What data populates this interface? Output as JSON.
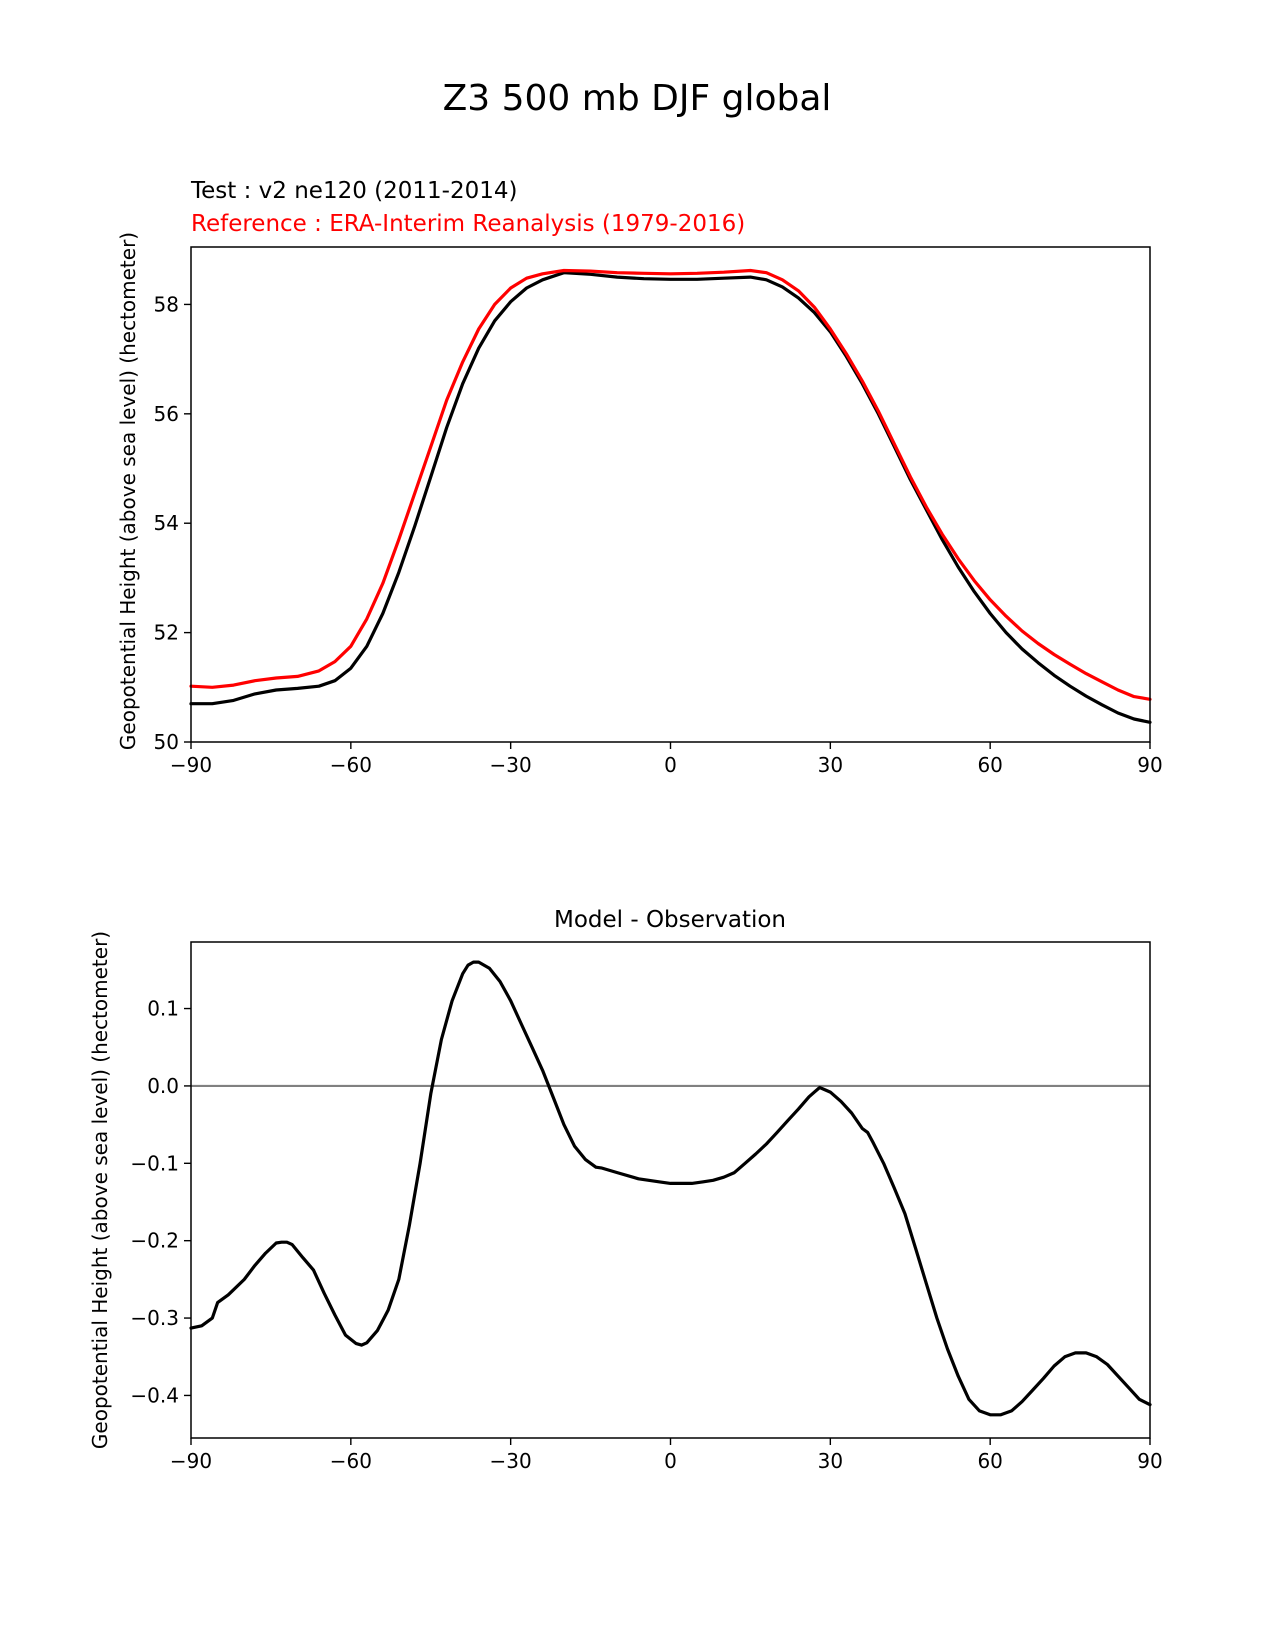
{
  "figure": {
    "title": "Z3 500 mb DJF global"
  },
  "chart_data": [
    {
      "type": "line",
      "name": "top",
      "title_left_test": "Test : v2 ne120 (2011-2014)",
      "title_left_ref": "Reference : ERA-Interim Reanalysis (1979-2016)",
      "ylabel": "Geopotential Height (above sea level) (hectometer)",
      "xlabel": "",
      "xlim": [
        -90,
        90
      ],
      "ylim": [
        50,
        59.05
      ],
      "xticks": [
        -90,
        -60,
        -30,
        0,
        30,
        60,
        90
      ],
      "xtick_labels": [
        "−90",
        "−60",
        "−30",
        "0",
        "30",
        "60",
        "90"
      ],
      "yticks": [
        50,
        52,
        54,
        56,
        58
      ],
      "ytick_labels": [
        "50",
        "52",
        "54",
        "56",
        "58"
      ],
      "series": [
        {
          "name": "Test : v2 ne120 (2011-2014)",
          "color": "#000000",
          "x": [
            -90,
            -86,
            -82,
            -78,
            -74,
            -70,
            -66,
            -63,
            -60,
            -57,
            -54,
            -51,
            -48,
            -45,
            -42,
            -39,
            -36,
            -33,
            -30,
            -27,
            -24,
            -20,
            -15,
            -10,
            -5,
            0,
            5,
            10,
            15,
            18,
            21,
            24,
            27,
            30,
            33,
            36,
            39,
            42,
            45,
            48,
            51,
            54,
            57,
            60,
            63,
            66,
            69,
            72,
            75,
            78,
            81,
            84,
            87,
            90
          ],
          "values": [
            50.7,
            50.7,
            50.76,
            50.88,
            50.95,
            50.98,
            51.02,
            51.12,
            51.35,
            51.75,
            52.35,
            53.1,
            53.95,
            54.85,
            55.75,
            56.55,
            57.2,
            57.7,
            58.05,
            58.3,
            58.45,
            58.58,
            58.55,
            58.5,
            58.47,
            58.46,
            58.46,
            58.48,
            58.5,
            58.45,
            58.32,
            58.12,
            57.85,
            57.5,
            57.05,
            56.55,
            56.0,
            55.4,
            54.8,
            54.25,
            53.7,
            53.2,
            52.75,
            52.35,
            52.0,
            51.7,
            51.45,
            51.22,
            51.02,
            50.84,
            50.68,
            50.53,
            50.42,
            50.36
          ]
        },
        {
          "name": "Reference : ERA-Interim Reanalysis (1979-2016)",
          "color": "#ff0000",
          "x": [
            -90,
            -86,
            -82,
            -78,
            -74,
            -70,
            -66,
            -63,
            -60,
            -57,
            -54,
            -51,
            -48,
            -45,
            -42,
            -39,
            -36,
            -33,
            -30,
            -27,
            -24,
            -20,
            -15,
            -10,
            -5,
            0,
            5,
            10,
            15,
            18,
            21,
            24,
            27,
            30,
            33,
            36,
            39,
            42,
            45,
            48,
            51,
            54,
            57,
            60,
            63,
            66,
            69,
            72,
            75,
            78,
            81,
            84,
            87,
            90
          ],
          "values": [
            51.02,
            51.0,
            51.04,
            51.12,
            51.17,
            51.2,
            51.3,
            51.47,
            51.75,
            52.25,
            52.9,
            53.7,
            54.55,
            55.4,
            56.25,
            56.95,
            57.55,
            58.0,
            58.3,
            58.48,
            58.56,
            58.62,
            58.61,
            58.58,
            58.57,
            58.56,
            58.57,
            58.59,
            58.62,
            58.58,
            58.45,
            58.25,
            57.95,
            57.55,
            57.1,
            56.6,
            56.05,
            55.45,
            54.85,
            54.3,
            53.8,
            53.35,
            52.95,
            52.6,
            52.3,
            52.03,
            51.8,
            51.6,
            51.42,
            51.25,
            51.1,
            50.95,
            50.83,
            50.78
          ]
        }
      ]
    },
    {
      "type": "line",
      "name": "bottom",
      "title": "Model - Observation",
      "ylabel": "Geopotential Height (above sea level) (hectometer)",
      "xlabel": "",
      "xlim": [
        -90,
        90
      ],
      "ylim": [
        -0.455,
        0.186
      ],
      "xticks": [
        -90,
        -60,
        -30,
        0,
        30,
        60,
        90
      ],
      "xtick_labels": [
        "−90",
        "−60",
        "−30",
        "0",
        "30",
        "60",
        "90"
      ],
      "yticks": [
        0.1,
        0.0,
        -0.1,
        -0.2,
        -0.3,
        -0.4
      ],
      "ytick_labels": [
        "0.1",
        "0.0",
        "−0.1",
        "−0.2",
        "−0.3",
        "−0.4"
      ],
      "zero_line": {
        "value": 0,
        "color": "#808080"
      },
      "series": [
        {
          "name": "Model - Observation",
          "color": "#000000",
          "x": [
            -90,
            -88,
            -86,
            -85,
            -83,
            -80,
            -78,
            -76,
            -74,
            -73,
            -72,
            -71,
            -69,
            -67,
            -65,
            -63,
            -61,
            -59,
            -58,
            -57,
            -55,
            -53,
            -51,
            -49,
            -47,
            -45,
            -43,
            -41,
            -39,
            -38,
            -37,
            -36,
            -34,
            -32,
            -30,
            -28,
            -26,
            -24,
            -22,
            -20,
            -18,
            -16,
            -14,
            -13,
            -10,
            -6,
            -2,
            0,
            2,
            4,
            6,
            8,
            10,
            12,
            14,
            16,
            18,
            20,
            22,
            24,
            26,
            27,
            28,
            30,
            32,
            34,
            36,
            37,
            38,
            40,
            42,
            44,
            46,
            48,
            50,
            52,
            54,
            56,
            58,
            60,
            62,
            64,
            66,
            68,
            70,
            72,
            74,
            76,
            78,
            80,
            82,
            84,
            86,
            88,
            90
          ],
          "values": [
            -0.313,
            -0.31,
            -0.3,
            -0.28,
            -0.27,
            -0.25,
            -0.232,
            -0.216,
            -0.203,
            -0.202,
            -0.202,
            -0.205,
            -0.222,
            -0.238,
            -0.268,
            -0.296,
            -0.322,
            -0.333,
            -0.335,
            -0.332,
            -0.316,
            -0.29,
            -0.25,
            -0.18,
            -0.1,
            -0.01,
            0.06,
            0.11,
            0.145,
            0.156,
            0.16,
            0.16,
            0.152,
            0.135,
            0.11,
            0.08,
            0.05,
            0.02,
            -0.015,
            -0.05,
            -0.078,
            -0.095,
            -0.105,
            -0.106,
            -0.112,
            -0.12,
            -0.124,
            -0.126,
            -0.126,
            -0.126,
            -0.124,
            -0.122,
            -0.118,
            -0.112,
            -0.1,
            -0.088,
            -0.075,
            -0.06,
            -0.045,
            -0.03,
            -0.014,
            -0.008,
            -0.002,
            -0.008,
            -0.02,
            -0.035,
            -0.055,
            -0.06,
            -0.073,
            -0.1,
            -0.132,
            -0.165,
            -0.21,
            -0.255,
            -0.3,
            -0.34,
            -0.375,
            -0.405,
            -0.42,
            -0.425,
            -0.425,
            -0.42,
            -0.408,
            -0.393,
            -0.378,
            -0.362,
            -0.35,
            -0.345,
            -0.345,
            -0.35,
            -0.36,
            -0.375,
            -0.39,
            -0.405,
            -0.412
          ]
        }
      ]
    }
  ]
}
